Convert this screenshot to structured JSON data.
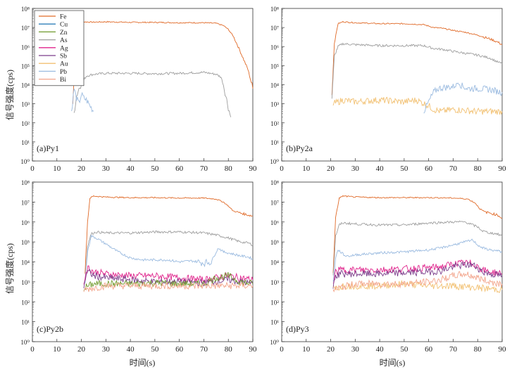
{
  "figure": {
    "ylabel": "信号强度(cps)",
    "xlabel": "时间(s)"
  },
  "chart_data": [
    {
      "type": "line",
      "panel": "(a)Py1",
      "title": "(a)Py1",
      "xlim": [
        0,
        90
      ],
      "ylim_exponent": [
        0,
        8
      ],
      "yscale": "log",
      "xticks": [
        0,
        10,
        20,
        30,
        40,
        50,
        60,
        70,
        80,
        90
      ],
      "yticks": [
        "10⁰",
        "10¹",
        "10²",
        "10³",
        "10⁴",
        "10⁵",
        "10⁶",
        "10⁷",
        "10⁸"
      ],
      "legend": {
        "position": "top-left",
        "entries": [
          {
            "name": "Fe",
            "color": "#e06a28"
          },
          {
            "name": "Cu",
            "color": "#2e7fb8"
          },
          {
            "name": "Zn",
            "color": "#6f9a2c"
          },
          {
            "name": "As",
            "color": "#9e9e9e"
          },
          {
            "name": "Ag",
            "color": "#e0248c"
          },
          {
            "name": "Sb",
            "color": "#7b3c8a"
          },
          {
            "name": "Au",
            "color": "#f2c173"
          },
          {
            "name": "Pb",
            "color": "#9bbbe0"
          },
          {
            "name": "Bi",
            "color": "#f3a58c"
          }
        ]
      },
      "series": [
        {
          "name": "Fe",
          "color": "#e06a28",
          "x": [
            16.5,
            17.5,
            18.5,
            20,
            25,
            30,
            40,
            50,
            60,
            70,
            75,
            78,
            80,
            82,
            84,
            86,
            88,
            89,
            90
          ],
          "y": [
            3.0,
            5.5,
            7.2,
            7.3,
            7.28,
            7.3,
            7.27,
            7.27,
            7.25,
            7.25,
            7.22,
            7.1,
            6.9,
            6.55,
            6.0,
            5.4,
            4.8,
            4.3,
            3.8
          ]
        },
        {
          "name": "As",
          "color": "#9e9e9e",
          "x": [
            17,
            18,
            19,
            20,
            22,
            25,
            30,
            40,
            50,
            60,
            70,
            75,
            77,
            78,
            79,
            80,
            81
          ],
          "y": [
            2.5,
            3.4,
            3.8,
            4.05,
            4.45,
            4.55,
            4.6,
            4.6,
            4.58,
            4.6,
            4.65,
            4.55,
            4.4,
            4.0,
            3.4,
            2.8,
            2.3
          ]
        },
        {
          "name": "Pb",
          "color": "#9bbbe0",
          "x": [
            16,
            17,
            18,
            19,
            20,
            21,
            22,
            23,
            24,
            25
          ],
          "y": [
            2.6,
            3.8,
            3.3,
            3.0,
            3.5,
            3.3,
            3.2,
            3.0,
            2.8,
            2.6
          ]
        }
      ]
    },
    {
      "type": "line",
      "panel": "(b)Py2a",
      "title": "(b)Py2a",
      "xlim": [
        0,
        90
      ],
      "ylim_exponent": [
        0,
        8
      ],
      "yscale": "log",
      "xticks": [
        0,
        10,
        20,
        30,
        40,
        50,
        60,
        70,
        80,
        90
      ],
      "yticks": [
        "10⁰",
        "10¹",
        "10²",
        "10³",
        "10⁴",
        "10⁵",
        "10⁶",
        "10⁷",
        "10⁸"
      ],
      "series": [
        {
          "name": "Fe",
          "color": "#e06a28",
          "x": [
            20.5,
            21.5,
            23,
            25,
            30,
            40,
            50,
            58,
            62,
            66,
            70,
            75,
            80,
            85,
            88,
            90
          ],
          "y": [
            3.5,
            6.2,
            7.2,
            7.3,
            7.25,
            7.2,
            7.2,
            7.15,
            7.0,
            6.95,
            6.85,
            6.75,
            6.6,
            6.4,
            6.25,
            6.1
          ]
        },
        {
          "name": "As",
          "color": "#9e9e9e",
          "x": [
            20.5,
            21.5,
            23,
            25,
            30,
            40,
            50,
            58,
            62,
            66,
            70,
            75,
            80,
            85,
            88,
            90
          ],
          "y": [
            3.3,
            5.5,
            6.0,
            6.15,
            6.1,
            6.05,
            6.05,
            6.05,
            5.9,
            5.85,
            5.75,
            5.65,
            5.55,
            5.4,
            5.2,
            5.1
          ]
        },
        {
          "name": "Au",
          "color": "#f2c173",
          "x": [
            21,
            25,
            30,
            40,
            50,
            55,
            60,
            62,
            65,
            70,
            80,
            90
          ],
          "y": [
            3.0,
            3.2,
            3.1,
            3.2,
            3.1,
            3.2,
            2.9,
            2.7,
            2.6,
            2.7,
            2.6,
            2.6
          ]
        },
        {
          "name": "Pb",
          "color": "#9bbbe0",
          "x": [
            58,
            60,
            62,
            64,
            66,
            70,
            72,
            74,
            76,
            80,
            85,
            88,
            90
          ],
          "y": [
            2.6,
            3.1,
            3.6,
            3.8,
            3.85,
            3.9,
            4.1,
            3.9,
            3.8,
            3.8,
            3.75,
            3.65,
            3.6
          ]
        }
      ]
    },
    {
      "type": "line",
      "panel": "(c)Py2b",
      "title": "(c)Py2b",
      "xlim": [
        0,
        90
      ],
      "ylim_exponent": [
        0,
        8
      ],
      "yscale": "log",
      "xticks": [
        0,
        10,
        20,
        30,
        40,
        50,
        60,
        70,
        80,
        90
      ],
      "yticks": [
        "10⁰",
        "10¹",
        "10²",
        "10³",
        "10⁴",
        "10⁵",
        "10⁶",
        "10⁷",
        "10⁸"
      ],
      "series": [
        {
          "name": "Fe",
          "color": "#e06a28",
          "x": [
            21.5,
            22.5,
            23.5,
            25,
            30,
            40,
            50,
            60,
            70,
            75,
            78,
            80,
            82,
            85,
            88,
            90
          ],
          "y": [
            3.5,
            6.0,
            7.2,
            7.3,
            7.25,
            7.22,
            7.22,
            7.2,
            7.2,
            7.15,
            7.0,
            6.8,
            6.55,
            6.45,
            6.35,
            6.3
          ]
        },
        {
          "name": "As",
          "color": "#9e9e9e",
          "x": [
            21.5,
            22.5,
            24,
            26,
            30,
            40,
            50,
            60,
            70,
            75,
            80,
            85,
            88,
            90
          ],
          "y": [
            3.0,
            4.8,
            5.4,
            5.5,
            5.45,
            5.45,
            5.5,
            5.5,
            5.45,
            5.35,
            5.2,
            5.0,
            4.95,
            4.85
          ]
        },
        {
          "name": "Pb",
          "color": "#9bbbe0",
          "x": [
            21.5,
            22.5,
            24,
            26,
            30,
            35,
            40,
            45,
            50,
            55,
            60,
            65,
            70,
            73,
            75,
            76,
            78,
            80,
            85,
            88,
            90
          ],
          "y": [
            3.0,
            4.5,
            5.3,
            5.2,
            4.9,
            4.5,
            4.2,
            4.1,
            4.1,
            4.1,
            4.0,
            4.05,
            3.95,
            4.0,
            4.5,
            4.7,
            4.5,
            4.45,
            4.3,
            4.25,
            4.15
          ]
        },
        {
          "name": "Ag",
          "color": "#e0248c",
          "x": [
            21,
            22,
            23,
            25,
            30,
            40,
            50,
            60,
            70,
            75,
            80,
            85,
            90
          ],
          "y": [
            2.8,
            3.6,
            3.7,
            3.5,
            3.4,
            3.3,
            3.3,
            3.2,
            3.1,
            3.2,
            3.3,
            3.2,
            3.1
          ]
        },
        {
          "name": "Sb",
          "color": "#7b3c8a",
          "x": [
            21,
            22,
            23,
            25,
            30,
            40,
            50,
            60,
            70,
            80,
            90
          ],
          "y": [
            2.8,
            3.4,
            3.5,
            3.3,
            3.2,
            3.1,
            3.0,
            3.0,
            2.95,
            3.1,
            2.9
          ]
        },
        {
          "name": "Zn",
          "color": "#6f9a2c",
          "x": [
            21,
            25,
            30,
            40,
            50,
            60,
            70,
            75,
            80,
            85,
            90
          ],
          "y": [
            2.7,
            2.9,
            2.9,
            2.9,
            2.95,
            2.9,
            2.9,
            3.2,
            3.3,
            3.0,
            2.9
          ]
        },
        {
          "name": "Bi",
          "color": "#f3a58c",
          "x": [
            21,
            30,
            40,
            50,
            60,
            70,
            80,
            90
          ],
          "y": [
            2.6,
            2.8,
            2.8,
            2.8,
            2.8,
            2.8,
            2.8,
            2.8
          ]
        }
      ]
    },
    {
      "type": "line",
      "panel": "(d)Py3",
      "title": "(d)Py3",
      "xlim": [
        0,
        90
      ],
      "ylim_exponent": [
        0,
        8
      ],
      "yscale": "log",
      "xticks": [
        0,
        10,
        20,
        30,
        40,
        50,
        60,
        70,
        80,
        90
      ],
      "yticks": [
        "10⁰",
        "10¹",
        "10²",
        "10³",
        "10⁴",
        "10⁵",
        "10⁶",
        "10⁷",
        "10⁸"
      ],
      "series": [
        {
          "name": "Fe",
          "color": "#e06a28",
          "x": [
            21,
            22,
            23.5,
            25,
            30,
            40,
            50,
            60,
            70,
            76,
            79,
            81,
            83,
            85,
            88,
            90
          ],
          "y": [
            3.5,
            6.2,
            7.2,
            7.3,
            7.25,
            7.22,
            7.22,
            7.22,
            7.2,
            7.15,
            6.95,
            6.65,
            6.5,
            6.45,
            6.35,
            6.2
          ]
        },
        {
          "name": "As",
          "color": "#9e9e9e",
          "x": [
            21,
            22,
            23.5,
            25,
            30,
            40,
            50,
            60,
            70,
            75,
            80,
            82,
            85,
            88,
            90
          ],
          "y": [
            3.3,
            5.3,
            5.85,
            5.95,
            5.9,
            5.85,
            5.85,
            5.95,
            6.0,
            6.0,
            5.75,
            5.55,
            5.45,
            5.4,
            5.3
          ]
        },
        {
          "name": "Pb",
          "color": "#9bbbe0",
          "x": [
            21,
            22,
            23,
            24,
            26,
            28,
            30,
            40,
            50,
            60,
            65,
            70,
            75,
            78,
            80,
            82,
            85,
            88,
            90
          ],
          "y": [
            3.0,
            4.2,
            4.6,
            4.5,
            4.3,
            4.3,
            4.35,
            4.45,
            4.5,
            4.6,
            4.7,
            4.85,
            5.0,
            5.1,
            4.85,
            4.7,
            4.6,
            4.55,
            4.5
          ]
        },
        {
          "name": "Ag",
          "color": "#e0248c",
          "x": [
            21,
            22,
            24,
            26,
            30,
            40,
            50,
            60,
            65,
            70,
            75,
            78,
            80,
            82,
            85,
            88,
            90
          ],
          "y": [
            2.9,
            3.5,
            3.6,
            3.6,
            3.6,
            3.6,
            3.65,
            3.7,
            3.75,
            3.9,
            3.95,
            3.9,
            3.8,
            3.6,
            3.5,
            3.45,
            3.4
          ]
        },
        {
          "name": "Sb",
          "color": "#7b3c8a",
          "x": [
            21,
            22,
            24,
            26,
            30,
            40,
            50,
            60,
            65,
            70,
            75,
            78,
            80,
            82,
            85,
            88,
            90
          ],
          "y": [
            2.8,
            3.3,
            3.4,
            3.4,
            3.4,
            3.4,
            3.45,
            3.5,
            3.55,
            3.75,
            3.85,
            3.85,
            3.7,
            3.5,
            3.4,
            3.35,
            3.3
          ]
        },
        {
          "name": "Au",
          "color": "#f2c173",
          "x": [
            21,
            25,
            30,
            40,
            50,
            60,
            70,
            80,
            90
          ],
          "y": [
            2.6,
            2.8,
            2.8,
            2.8,
            2.9,
            2.8,
            2.8,
            2.7,
            2.6
          ]
        },
        {
          "name": "Bi",
          "color": "#f3a58c",
          "x": [
            21,
            30,
            40,
            50,
            60,
            65,
            70,
            75,
            80,
            85,
            90
          ],
          "y": [
            2.6,
            2.9,
            2.9,
            2.9,
            3.0,
            3.1,
            3.3,
            3.4,
            3.2,
            3.0,
            2.9
          ]
        }
      ]
    }
  ]
}
